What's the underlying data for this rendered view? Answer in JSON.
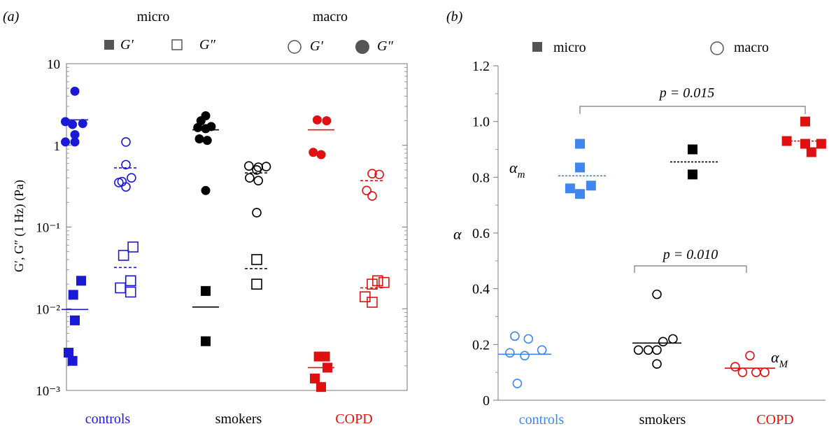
{
  "panels": {
    "a": {
      "label": "(a)",
      "group_headers": [
        "micro",
        "macro"
      ],
      "legend": [
        {
          "marker": "filled-square",
          "text": "G′"
        },
        {
          "marker": "open-square",
          "text": "G″"
        },
        {
          "marker": "open-circle",
          "text": "G′"
        },
        {
          "marker": "filled-circle",
          "text": "G″"
        }
      ],
      "ylabel": "G′, G″ (1 Hz) (Pa)"
    },
    "b": {
      "label": "(b)",
      "legend": [
        {
          "marker": "filled-square",
          "text": "micro"
        },
        {
          "marker": "open-circle",
          "text": "macro"
        }
      ],
      "ylabel": "α",
      "series_labels": {
        "alpha_m": "αm",
        "alpha_M": "αM"
      },
      "significance": [
        {
          "text": "p = 0.015",
          "from": "controls",
          "to": "COPD",
          "series": "micro"
        },
        {
          "text": "p = 0.010",
          "from": "smokers",
          "to": "COPD",
          "series": "macro"
        }
      ]
    }
  },
  "colors": {
    "controls": "#1a1ad6",
    "smokers": "#000000",
    "COPD": "#e01010",
    "controls_b": "#3f86f0",
    "axis": "#555555"
  },
  "chart_data": [
    {
      "type": "scatter",
      "panel": "a",
      "yscale": "log",
      "ylim": [
        0.001,
        10
      ],
      "yticks": [
        {
          "value": 10,
          "label": "10"
        },
        {
          "value": 1,
          "label": "1"
        },
        {
          "value": 0.1,
          "label": "10⁻¹"
        },
        {
          "value": 0.01,
          "label": "10⁻²"
        },
        {
          "value": 0.001,
          "label": "10⁻³"
        }
      ],
      "categories": [
        "controls",
        "smokers",
        "COPD"
      ],
      "series": [
        {
          "name": "micro G′",
          "marker": "filled-square",
          "medians": [
            0.0098,
            0.0105,
            0.0019
          ],
          "values": [
            [
              0.0148,
              0.0072,
              0.0029,
              0.0023,
              0.022
            ],
            [
              0.0165,
              0.004
            ],
            [
              0.0026,
              0.0026,
              0.0019,
              0.0014,
              0.0011
            ]
          ],
          "jitter": [
            [
              -0.02,
              0.0,
              -0.08,
              -0.03,
              0.08
            ],
            [
              0.0,
              0.0
            ],
            [
              -0.03,
              0.05,
              0.08,
              -0.08,
              0.0
            ]
          ]
        },
        {
          "name": "micro G″",
          "marker": "open-square",
          "medians": [
            0.032,
            0.031,
            0.018
          ],
          "values": [
            [
              0.045,
              0.057,
              0.022,
              0.018,
              0.016,
              0.022
            ],
            [
              0.04,
              0.02
            ],
            [
              0.014,
              0.012,
              0.02,
              0.022,
              0.021
            ]
          ],
          "jitter": [
            [
              -0.03,
              0.09,
              0.06,
              -0.07,
              0.06,
              0.06
            ],
            [
              0.0,
              0.0
            ],
            [
              -0.09,
              0.0,
              0.0,
              0.07,
              0.15
            ]
          ]
        },
        {
          "name": "macro G′",
          "marker": "open-circle",
          "medians": [
            0.53,
            0.46,
            0.37
          ],
          "values": [
            [
              1.1,
              0.58,
              0.4,
              0.36,
              0.35,
              0.31
            ],
            [
              0.56,
              0.54,
              0.55,
              0.5,
              0.4,
              0.37,
              0.15
            ],
            [
              0.45,
              0.44,
              0.28,
              0.24
            ]
          ],
          "jitter": [
            [
              0.0,
              0.0,
              0.07,
              -0.05,
              -0.09,
              0.0
            ],
            [
              -0.1,
              0.02,
              0.12,
              0.0,
              -0.09,
              0.02,
              0.0
            ],
            [
              0.0,
              0.09,
              -0.07,
              0.0
            ]
          ]
        },
        {
          "name": "macro G″",
          "marker": "filled-circle",
          "medians": [
            2.05,
            1.55,
            1.55
          ],
          "values": [
            [
              4.6,
              1.95,
              1.8,
              1.85,
              1.35,
              1.1,
              1.1
            ],
            [
              2.3,
              2.0,
              1.7,
              1.6,
              1.65,
              1.2,
              1.15,
              0.28
            ],
            [
              2.05,
              2.0,
              0.82,
              0.77
            ]
          ],
          "jitter": [
            [
              0.0,
              -0.12,
              -0.03,
              0.1,
              0.0,
              -0.12,
              0.0
            ],
            [
              0.0,
              -0.06,
              0.07,
              0.0,
              -0.1,
              -0.08,
              0.02,
              0.0
            ],
            [
              -0.05,
              0.07,
              -0.1,
              0.0
            ]
          ]
        }
      ]
    },
    {
      "type": "scatter",
      "panel": "b",
      "ylim": [
        0,
        1.2
      ],
      "yticks": [
        {
          "value": 0,
          "label": "0"
        },
        {
          "value": 0.2,
          "label": "0.2"
        },
        {
          "value": 0.4,
          "label": "0.4"
        },
        {
          "value": 0.6,
          "label": "0.6"
        },
        {
          "value": 0.8,
          "label": "0.8"
        },
        {
          "value": 1.0,
          "label": "1.0"
        },
        {
          "value": 1.2,
          "label": "1.2"
        }
      ],
      "categories": [
        "controls",
        "smokers",
        "COPD"
      ],
      "series": [
        {
          "name": "micro",
          "marker": "filled-square",
          "medians": [
            0.805,
            0.855,
            0.93
          ],
          "values": [
            [
              0.92,
              0.835,
              0.76,
              0.77,
              0.74
            ],
            [
              0.9,
              0.81
            ],
            [
              1.0,
              0.93,
              0.92,
              0.92,
              0.89
            ]
          ],
          "jitter": [
            [
              0.0,
              0.0,
              -0.08,
              0.09,
              0.0
            ],
            [
              0.0,
              0.0
            ],
            [
              0.0,
              -0.15,
              0.0,
              0.13,
              0.05
            ]
          ]
        },
        {
          "name": "macro",
          "marker": "open-circle",
          "medians": [
            0.165,
            0.205,
            0.115
          ],
          "values": [
            [
              0.23,
              0.22,
              0.18,
              0.17,
              0.16,
              0.06
            ],
            [
              0.38,
              0.22,
              0.21,
              0.18,
              0.18,
              0.18,
              0.13
            ],
            [
              0.16,
              0.12,
              0.1,
              0.1,
              0.1
            ]
          ],
          "jitter": [
            [
              -0.08,
              0.03,
              0.14,
              -0.12,
              0.0,
              -0.06
            ],
            [
              0.0,
              0.13,
              0.05,
              -0.15,
              -0.07,
              0.0,
              0.0
            ],
            [
              0.0,
              -0.12,
              -0.06,
              0.05,
              0.12
            ]
          ]
        }
      ]
    }
  ]
}
